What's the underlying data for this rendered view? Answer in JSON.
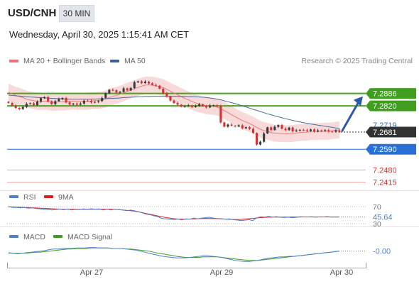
{
  "header": {
    "symbol": "USD/CNH",
    "timeframe": "30 MIN",
    "datetime": "Wednesday, April 30, 2025 1:15:41 AM CET"
  },
  "legend_main": [
    {
      "label": "MA 20 + Bollinger Bands",
      "color": "#f07070"
    },
    {
      "label": "MA 50",
      "color": "#3a5f9a"
    }
  ],
  "research_note": "Research © 2025 Trading Central",
  "chart_data": [
    {
      "type": "candlestick",
      "title": "USD/CNH",
      "x_labels": [
        "Apr 27",
        "Apr 29",
        "Apr 30"
      ],
      "ylim": [
        7.238,
        7.302
      ],
      "price_labels": [
        {
          "value": 7.2886,
          "text": "7.2886",
          "style": "green",
          "line": true
        },
        {
          "value": 7.282,
          "text": "7.2820",
          "style": "green",
          "line": true
        },
        {
          "value": 7.2719,
          "text": "7.2719",
          "style": "plain",
          "line": false
        },
        {
          "value": 7.2681,
          "text": "7.2681",
          "style": "dark",
          "line": false
        },
        {
          "value": 7.259,
          "text": "7.2590",
          "style": "blue",
          "line": true
        },
        {
          "value": 7.248,
          "text": "7.2480",
          "style": "red",
          "line": true
        },
        {
          "value": 7.2415,
          "text": "7.2415",
          "style": "red",
          "line": true
        }
      ],
      "close": [
        7.2836,
        7.2822,
        7.2809,
        7.2803,
        7.2814,
        7.2831,
        7.2834,
        7.2824,
        7.2842,
        7.2861,
        7.2866,
        7.2845,
        7.2829,
        7.2845,
        7.2856,
        7.2862,
        7.2838,
        7.2827,
        7.2832,
        7.2826,
        7.2832,
        7.2848,
        7.2846,
        7.2838,
        7.2841,
        7.2845,
        7.2862,
        7.2887,
        7.2905,
        7.2903,
        7.2891,
        7.2894,
        7.2913,
        7.2902,
        7.2915,
        7.2945,
        7.295,
        7.2941,
        7.2949,
        7.2939,
        7.2931,
        7.2927,
        7.2911,
        7.2887,
        7.287,
        7.2848,
        7.2835,
        7.2826,
        7.2816,
        7.2819,
        7.2822,
        7.2814,
        7.2821,
        7.2828,
        7.2819,
        7.2812,
        7.2822,
        7.2823,
        7.2818,
        7.2732,
        7.271,
        7.2721,
        7.2715,
        7.2711,
        7.2717,
        7.2701,
        7.2707,
        7.2698,
        7.2676,
        7.2615,
        7.263,
        7.2674,
        7.2706,
        7.2692,
        7.2709,
        7.2718,
        7.2699,
        7.2692,
        7.2705,
        7.2685,
        7.269,
        7.2693,
        7.2691,
        7.2687,
        7.2695,
        7.2684,
        7.269,
        7.2687,
        7.2691,
        7.2684,
        7.2683,
        7.269,
        7.2681
      ],
      "ma20": [
        7.2893,
        7.2884,
        7.2876,
        7.287,
        7.2864,
        7.2856,
        7.2851,
        7.2848,
        7.2844,
        7.2844,
        7.2845,
        7.2843,
        7.2839,
        7.2839,
        7.2841,
        7.2841,
        7.2842,
        7.2844,
        7.2845,
        7.2844,
        7.2844,
        7.2844,
        7.2845,
        7.2847,
        7.2848,
        7.2849,
        7.2851,
        7.2857,
        7.2864,
        7.287,
        7.2876,
        7.2882,
        7.289,
        7.2897,
        7.2904,
        7.2912,
        7.2918,
        7.2924,
        7.293,
        7.2931,
        7.293,
        7.2926,
        7.2921,
        7.2917,
        7.2908,
        7.2898,
        7.2888,
        7.2879,
        7.2869,
        7.286,
        7.2852,
        7.2844,
        7.2836,
        7.283,
        7.2826,
        7.2821,
        7.2819,
        7.2817,
        7.2813,
        7.2806,
        7.2795,
        7.2785,
        7.2773,
        7.2763,
        7.2752,
        7.2742,
        7.2735,
        7.2726,
        7.2717,
        7.2706,
        7.2696,
        7.269,
        7.2685,
        7.2679,
        7.2675,
        7.2675,
        7.2673,
        7.2672,
        7.2673,
        7.2674,
        7.2676,
        7.2679,
        7.268,
        7.2681,
        7.2683,
        7.2684,
        7.2684,
        7.2685,
        7.2685,
        7.2686,
        7.2688,
        7.2691,
        7.2692
      ],
      "ma50": [
        7.2877,
        7.2875,
        7.2873,
        7.2872,
        7.287,
        7.2869,
        7.2867,
        7.2866,
        7.2865,
        7.2864,
        7.2862,
        7.2861,
        7.286,
        7.2859,
        7.2858,
        7.2857,
        7.2856,
        7.2856,
        7.2855,
        7.2855,
        7.2855,
        7.2855,
        7.2855,
        7.2856,
        7.2856,
        7.2857,
        7.2857,
        7.2858,
        7.2859,
        7.286,
        7.2861,
        7.2862,
        7.2864,
        7.2865,
        7.2866,
        7.2867,
        7.2868,
        7.2869,
        7.287,
        7.287,
        7.2871,
        7.2871,
        7.2871,
        7.2871,
        7.2871,
        7.2871,
        7.2871,
        7.2871,
        7.287,
        7.287,
        7.2869,
        7.2869,
        7.2868,
        7.2867,
        7.2866,
        7.2864,
        7.2862,
        7.2859,
        7.2856,
        7.2852,
        7.2847,
        7.2842,
        7.2837,
        7.2832,
        7.2826,
        7.282,
        7.2814,
        7.2808,
        7.2802,
        7.2796,
        7.279,
        7.2784,
        7.2778,
        7.2773,
        7.2767,
        7.2762,
        7.2757,
        7.2752,
        7.2748,
        7.2743,
        7.2739,
        7.2735,
        7.2731,
        7.2728,
        7.2724,
        7.2721,
        7.2718,
        7.2715,
        7.2712,
        7.2709,
        7.2706,
        7.2703,
        7.27
      ],
      "bb_band_width": 0.0045,
      "annotation": "arrow up to 7.2886"
    },
    {
      "type": "line",
      "title": "RSI",
      "legend": [
        {
          "label": "RSI",
          "color": "#4f7fd0"
        },
        {
          "label": "9MA",
          "color": "#e02020"
        }
      ],
      "levels": [
        {
          "value": 70,
          "text": "70"
        },
        {
          "value": 30,
          "text": "30"
        }
      ],
      "current": {
        "value": 45.64,
        "text": "45.64"
      },
      "ylim": [
        25,
        75
      ],
      "rsi": [
        70.5,
        68.2,
        67.9,
        67.0,
        67.8,
        66.4,
        66.9,
        65.5,
        64.9,
        63.0,
        63.5,
        62.0,
        63.2,
        64.1,
        63.0,
        64.5,
        62.1,
        63.4,
        62.8,
        64.7,
        63.5,
        65.0,
        63.9,
        64.5,
        62.0,
        63.6,
        62.1,
        63.9,
        63.2,
        61.8,
        60.5,
        61.9,
        60.1,
        58.0,
        55.2,
        52.4,
        50.8,
        48.0,
        46.0,
        42.0,
        41.2,
        40.1,
        39.5,
        40.8,
        38.9,
        41.2,
        40.3,
        43.1,
        41.5,
        43.0,
        44.2,
        45.0,
        43.1,
        42.2,
        41.8,
        40.5,
        41.3,
        39.2,
        38.5,
        37.4,
        38.1,
        39.3,
        37.2,
        43.5,
        46.3,
        45.1,
        47.0,
        45.5,
        46.5,
        45.0,
        44.3,
        45.1,
        44.0,
        44.8,
        46.2,
        45.8,
        45.9,
        46.1,
        45.2,
        46.0,
        45.8,
        46.5,
        45.5,
        45.6,
        45.64
      ],
      "ma9": [
        69.5,
        69.1,
        68.8,
        68.4,
        68.0,
        67.6,
        67.2,
        66.8,
        66.4,
        66.0,
        65.5,
        65.0,
        64.7,
        64.3,
        64.0,
        63.9,
        63.7,
        63.6,
        63.5,
        63.5,
        63.6,
        63.6,
        63.7,
        63.8,
        63.8,
        63.7,
        63.6,
        63.3,
        62.8,
        62.2,
        61.4,
        60.4,
        59.1,
        57.6,
        55.8,
        53.9,
        51.9,
        49.8,
        47.8,
        46.0,
        44.2,
        42.9,
        41.7,
        40.9,
        40.6,
        40.5,
        40.8,
        41.2,
        41.6,
        42.1,
        42.3,
        42.2,
        42.0,
        41.6,
        41.2,
        40.7,
        40.2,
        39.8,
        39.6,
        40.0,
        40.8,
        41.6,
        42.4,
        43.3,
        44.1,
        44.7,
        45.1,
        45.3,
        45.4,
        45.5,
        45.5,
        45.5,
        45.6,
        45.6,
        45.6,
        45.6,
        45.6,
        45.6,
        45.6,
        45.6,
        45.6,
        45.6,
        45.6,
        45.6,
        45.6
      ]
    },
    {
      "type": "line",
      "title": "MACD",
      "legend": [
        {
          "label": "MACD",
          "color": "#4f7fd0"
        },
        {
          "label": "MACD Signal",
          "color": "#3aa020"
        }
      ],
      "current": {
        "value": -0.0,
        "text": "-0.00"
      },
      "ylim": [
        -0.0025,
        0.0016
      ],
      "macd": [
        -0.0003,
        -0.0004,
        -0.0005,
        -0.0004,
        -0.0003,
        -0.0002,
        -0.0001,
        0.0,
        0.0001,
        0.0003,
        0.0004,
        0.0004,
        0.0005,
        0.0005,
        0.0005,
        0.0006,
        0.0006,
        0.0006,
        0.0007,
        0.0007,
        0.0006,
        0.0006,
        0.0006,
        0.0005,
        0.0005,
        0.0005,
        0.0004,
        0.0003,
        0.0002,
        0.0,
        -0.0002,
        -0.0004,
        -0.0006,
        -0.0008,
        -0.001,
        -0.0011,
        -0.0012,
        -0.0013,
        -0.0013,
        -0.0013,
        -0.0012,
        -0.0011,
        -0.001,
        -0.0009,
        -0.0009,
        -0.001,
        -0.0011,
        -0.0012,
        -0.0014,
        -0.0016,
        -0.0018,
        -0.0019,
        -0.002,
        -0.002,
        -0.0019,
        -0.0018,
        -0.0016,
        -0.0014,
        -0.0013,
        -0.0012,
        -0.0011,
        -0.0011,
        -0.001,
        -0.001,
        -0.0009,
        -0.0008,
        -0.0007,
        -0.0006,
        -0.0005,
        -0.0004,
        -0.0003,
        -0.0002,
        -0.0001,
        0.0
      ],
      "signal": [
        -0.0004,
        -0.0004,
        -0.0004,
        -0.0004,
        -0.0004,
        -0.0003,
        -0.0002,
        -0.0002,
        -0.0001,
        0.0,
        0.0001,
        0.0002,
        0.0003,
        0.0004,
        0.0004,
        0.0005,
        0.0005,
        0.0005,
        0.0006,
        0.0006,
        0.0006,
        0.0006,
        0.0006,
        0.0005,
        0.0005,
        0.0005,
        0.0004,
        0.0004,
        0.0003,
        0.0002,
        0.0001,
        0.0,
        -0.0002,
        -0.0004,
        -0.0005,
        -0.0007,
        -0.0008,
        -0.001,
        -0.0011,
        -0.0012,
        -0.0012,
        -0.0012,
        -0.0012,
        -0.0011,
        -0.0011,
        -0.0011,
        -0.0011,
        -0.0012,
        -0.0013,
        -0.0014,
        -0.0015,
        -0.0016,
        -0.0017,
        -0.0018,
        -0.0018,
        -0.0018,
        -0.0017,
        -0.0016,
        -0.0015,
        -0.0014,
        -0.0013,
        -0.0012,
        -0.0011,
        -0.001,
        -0.0009,
        -0.0008,
        -0.0007,
        -0.0006,
        -0.0005,
        -0.0004,
        -0.0003,
        -0.0002,
        -0.0001,
        -0.0
      ]
    }
  ]
}
